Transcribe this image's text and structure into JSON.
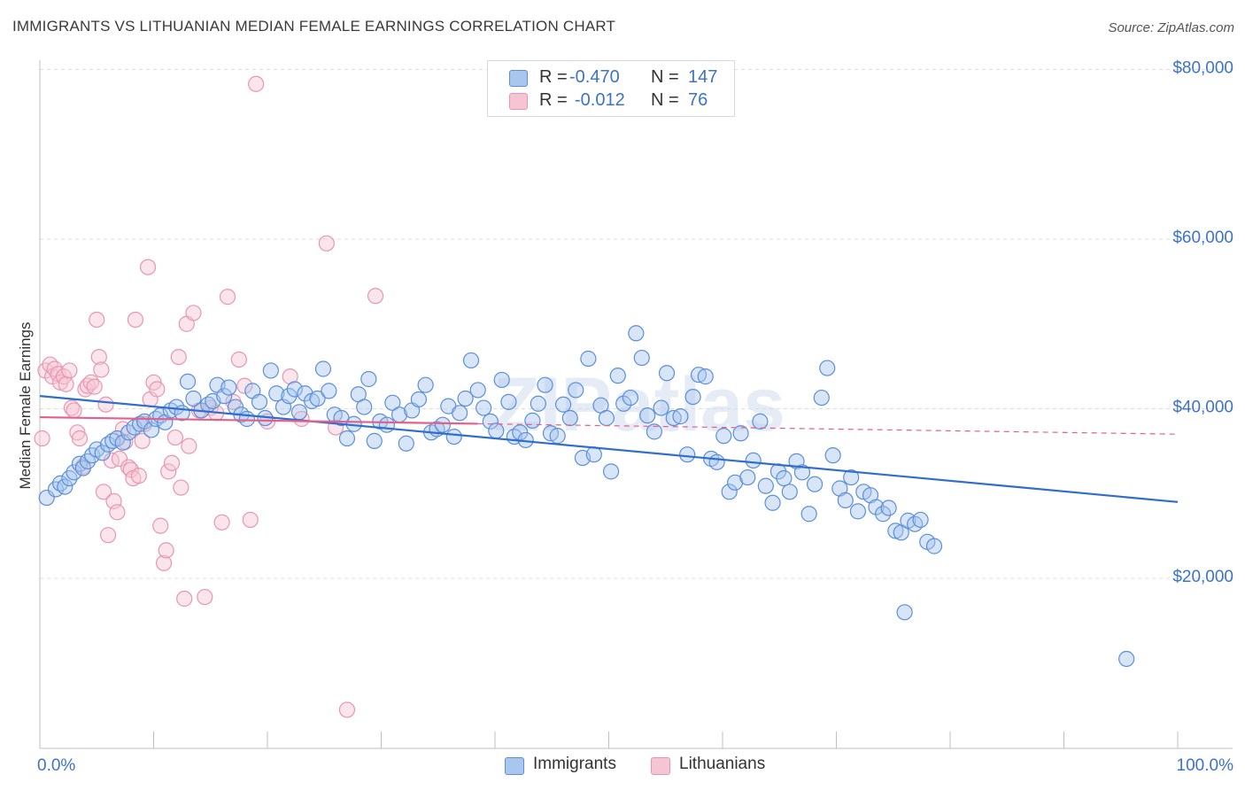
{
  "title": "IMMIGRANTS VS LITHUANIAN MEDIAN FEMALE EARNINGS CORRELATION CHART",
  "source": "Source: ZipAtlas.com",
  "watermark": "ZIPatlas",
  "colors": {
    "immigrants_stroke": "#5b8fd9",
    "immigrants_fill": "#a9c6ee",
    "immigrants_line": "#2f6dce",
    "lithuanians_stroke": "#e896b0",
    "lithuanians_fill": "#f6c5d4",
    "lithuanians_line": "#e2608a",
    "axis_label": "#3d72cb",
    "grid": "#dcdcdc"
  },
  "legend": {
    "rows": [
      {
        "r_label": "R =",
        "r_value": "-0.470",
        "n_label": "N =",
        "n_value": "147"
      },
      {
        "r_label": "R =",
        "r_value": "-0.012",
        "n_label": "N =",
        "n_value": "76"
      }
    ]
  },
  "bottom_legend": {
    "immigrants": "Immigrants",
    "lithuanians": "Lithuanians"
  },
  "chart_data": {
    "type": "scatter",
    "title": "IMMIGRANTS VS LITHUANIAN MEDIAN FEMALE EARNINGS CORRELATION CHART",
    "xlabel": "",
    "ylabel": "Median Female Earnings",
    "xlim": [
      0,
      100
    ],
    "ylim": [
      0,
      80000
    ],
    "x_tick_labels": [
      "0.0%",
      "100.0%"
    ],
    "y_ticks": [
      20000,
      40000,
      60000,
      80000
    ],
    "y_tick_labels": [
      "$20,000",
      "$40,000",
      "$60,000",
      "$80,000"
    ],
    "grid": "horizontal dashed",
    "legend_position": "top-center",
    "series": [
      {
        "name": "Immigrants",
        "r": -0.47,
        "n": 147,
        "trend": {
          "x": [
            0,
            100
          ],
          "y": [
            41500,
            29000
          ],
          "dashed_from": null
        },
        "points": [
          [
            0.6,
            29500
          ],
          [
            1.4,
            30500
          ],
          [
            1.8,
            31200
          ],
          [
            2.2,
            30800
          ],
          [
            2.6,
            31800
          ],
          [
            3.0,
            32500
          ],
          [
            3.5,
            33500
          ],
          [
            3.8,
            33000
          ],
          [
            4.2,
            33800
          ],
          [
            4.6,
            34500
          ],
          [
            5.0,
            35200
          ],
          [
            5.5,
            34800
          ],
          [
            6.0,
            35800
          ],
          [
            6.4,
            36200
          ],
          [
            6.8,
            36500
          ],
          [
            7.3,
            36000
          ],
          [
            7.8,
            37200
          ],
          [
            8.3,
            37800
          ],
          [
            8.8,
            38200
          ],
          [
            9.2,
            38500
          ],
          [
            9.8,
            37500
          ],
          [
            10.2,
            38800
          ],
          [
            10.6,
            39200
          ],
          [
            11.0,
            38400
          ],
          [
            11.5,
            39800
          ],
          [
            12.0,
            40200
          ],
          [
            12.5,
            39500
          ],
          [
            13.0,
            43200
          ],
          [
            13.5,
            41200
          ],
          [
            14.2,
            39800
          ],
          [
            14.8,
            40500
          ],
          [
            15.2,
            40900
          ],
          [
            15.6,
            42800
          ],
          [
            16.2,
            41500
          ],
          [
            16.6,
            42500
          ],
          [
            17.2,
            40200
          ],
          [
            17.7,
            39300
          ],
          [
            18.2,
            38800
          ],
          [
            18.7,
            42100
          ],
          [
            19.3,
            40800
          ],
          [
            19.8,
            38900
          ],
          [
            20.3,
            44500
          ],
          [
            20.8,
            41800
          ],
          [
            21.4,
            40200
          ],
          [
            21.9,
            41500
          ],
          [
            22.4,
            42300
          ],
          [
            22.8,
            39600
          ],
          [
            23.3,
            41800
          ],
          [
            23.9,
            40900
          ],
          [
            24.4,
            41200
          ],
          [
            24.9,
            44700
          ],
          [
            25.4,
            42100
          ],
          [
            25.9,
            39300
          ],
          [
            26.5,
            38900
          ],
          [
            27.0,
            36500
          ],
          [
            27.6,
            38200
          ],
          [
            28.0,
            41700
          ],
          [
            28.5,
            40200
          ],
          [
            28.9,
            43500
          ],
          [
            29.4,
            36200
          ],
          [
            29.9,
            38500
          ],
          [
            30.5,
            38100
          ],
          [
            31.0,
            40700
          ],
          [
            31.6,
            39300
          ],
          [
            32.2,
            35900
          ],
          [
            32.7,
            39800
          ],
          [
            33.3,
            41100
          ],
          [
            33.9,
            42800
          ],
          [
            34.4,
            37200
          ],
          [
            34.9,
            37600
          ],
          [
            35.4,
            38100
          ],
          [
            35.9,
            40300
          ],
          [
            36.4,
            36700
          ],
          [
            36.9,
            39500
          ],
          [
            37.4,
            41200
          ],
          [
            37.9,
            45700
          ],
          [
            38.5,
            42200
          ],
          [
            39.0,
            40100
          ],
          [
            39.6,
            38500
          ],
          [
            40.1,
            37400
          ],
          [
            40.6,
            43400
          ],
          [
            41.2,
            40800
          ],
          [
            41.7,
            36700
          ],
          [
            42.2,
            37200
          ],
          [
            42.7,
            36300
          ],
          [
            43.3,
            38600
          ],
          [
            43.8,
            40600
          ],
          [
            44.4,
            42800
          ],
          [
            44.9,
            37100
          ],
          [
            45.5,
            36800
          ],
          [
            46.0,
            40500
          ],
          [
            46.6,
            38900
          ],
          [
            47.1,
            42200
          ],
          [
            47.7,
            34200
          ],
          [
            48.2,
            45900
          ],
          [
            48.7,
            34600
          ],
          [
            49.3,
            40400
          ],
          [
            49.8,
            38900
          ],
          [
            50.2,
            32600
          ],
          [
            50.8,
            43900
          ],
          [
            51.3,
            40600
          ],
          [
            51.9,
            41300
          ],
          [
            52.4,
            48900
          ],
          [
            52.9,
            46000
          ],
          [
            53.4,
            39200
          ],
          [
            54.0,
            37300
          ],
          [
            54.6,
            40100
          ],
          [
            55.1,
            44200
          ],
          [
            55.7,
            38900
          ],
          [
            56.3,
            39100
          ],
          [
            56.9,
            34600
          ],
          [
            57.4,
            41400
          ],
          [
            57.9,
            44000
          ],
          [
            58.5,
            43800
          ],
          [
            59.0,
            34100
          ],
          [
            59.5,
            33700
          ],
          [
            60.1,
            36800
          ],
          [
            60.6,
            30200
          ],
          [
            61.1,
            31300
          ],
          [
            61.6,
            37100
          ],
          [
            62.2,
            31900
          ],
          [
            62.7,
            33900
          ],
          [
            63.3,
            38500
          ],
          [
            63.8,
            30900
          ],
          [
            64.4,
            28900
          ],
          [
            64.9,
            32600
          ],
          [
            65.4,
            31800
          ],
          [
            65.9,
            30200
          ],
          [
            66.5,
            33800
          ],
          [
            67.0,
            32500
          ],
          [
            67.6,
            27600
          ],
          [
            68.1,
            31100
          ],
          [
            68.7,
            41300
          ],
          [
            69.2,
            44800
          ],
          [
            69.7,
            34500
          ],
          [
            70.3,
            30600
          ],
          [
            70.8,
            29200
          ],
          [
            71.3,
            31900
          ],
          [
            71.9,
            27900
          ],
          [
            72.4,
            30200
          ],
          [
            73.0,
            29800
          ],
          [
            73.5,
            28400
          ],
          [
            74.1,
            27600
          ],
          [
            74.6,
            28300
          ],
          [
            75.2,
            25600
          ],
          [
            75.7,
            25400
          ],
          [
            76.3,
            26800
          ],
          [
            76.9,
            26400
          ],
          [
            77.4,
            26900
          ],
          [
            78.0,
            24300
          ],
          [
            78.6,
            23800
          ],
          [
            76.0,
            16000
          ],
          [
            95.5,
            10500
          ]
        ]
      },
      {
        "name": "Lithuanians",
        "r": -0.012,
        "n": 76,
        "trend": {
          "x": [
            0,
            100
          ],
          "y": [
            39000,
            37000
          ],
          "dashed_from": 38.5
        },
        "points": [
          [
            0.5,
            44500
          ],
          [
            0.9,
            45200
          ],
          [
            1.1,
            43800
          ],
          [
            1.3,
            44700
          ],
          [
            1.6,
            44100
          ],
          [
            1.8,
            43100
          ],
          [
            2.1,
            43800
          ],
          [
            2.3,
            42900
          ],
          [
            2.6,
            44500
          ],
          [
            2.8,
            40100
          ],
          [
            3.0,
            39800
          ],
          [
            3.3,
            37200
          ],
          [
            3.5,
            36500
          ],
          [
            3.8,
            33200
          ],
          [
            4.0,
            42300
          ],
          [
            4.2,
            42700
          ],
          [
            4.5,
            43100
          ],
          [
            4.8,
            42600
          ],
          [
            5.0,
            50500
          ],
          [
            5.2,
            46100
          ],
          [
            5.4,
            44600
          ],
          [
            5.6,
            30200
          ],
          [
            5.8,
            40500
          ],
          [
            6.0,
            25100
          ],
          [
            6.3,
            33900
          ],
          [
            6.5,
            29100
          ],
          [
            6.8,
            27800
          ],
          [
            7.0,
            34100
          ],
          [
            7.3,
            37600
          ],
          [
            7.5,
            36100
          ],
          [
            7.8,
            33100
          ],
          [
            8.0,
            32800
          ],
          [
            8.2,
            31800
          ],
          [
            8.4,
            50500
          ],
          [
            8.7,
            32100
          ],
          [
            9.0,
            36200
          ],
          [
            9.2,
            38200
          ],
          [
            9.5,
            56700
          ],
          [
            9.7,
            41100
          ],
          [
            10.0,
            43100
          ],
          [
            10.3,
            42300
          ],
          [
            10.6,
            26200
          ],
          [
            10.9,
            21800
          ],
          [
            11.1,
            23300
          ],
          [
            11.3,
            32600
          ],
          [
            11.6,
            33600
          ],
          [
            11.9,
            36600
          ],
          [
            12.2,
            46100
          ],
          [
            12.4,
            30700
          ],
          [
            12.7,
            17600
          ],
          [
            12.9,
            50000
          ],
          [
            13.1,
            35600
          ],
          [
            13.5,
            51300
          ],
          [
            14.0,
            39800
          ],
          [
            14.5,
            17800
          ],
          [
            15.0,
            40100
          ],
          [
            15.5,
            39500
          ],
          [
            16.0,
            26600
          ],
          [
            16.5,
            53200
          ],
          [
            17.0,
            40800
          ],
          [
            17.5,
            45800
          ],
          [
            18.0,
            42700
          ],
          [
            18.5,
            26900
          ],
          [
            19.0,
            78300
          ],
          [
            20.0,
            38500
          ],
          [
            22.0,
            43800
          ],
          [
            23.0,
            38800
          ],
          [
            25.2,
            59500
          ],
          [
            26.0,
            37800
          ],
          [
            27.0,
            4500
          ],
          [
            29.5,
            53300
          ],
          [
            0.2,
            36500
          ]
        ]
      }
    ]
  }
}
